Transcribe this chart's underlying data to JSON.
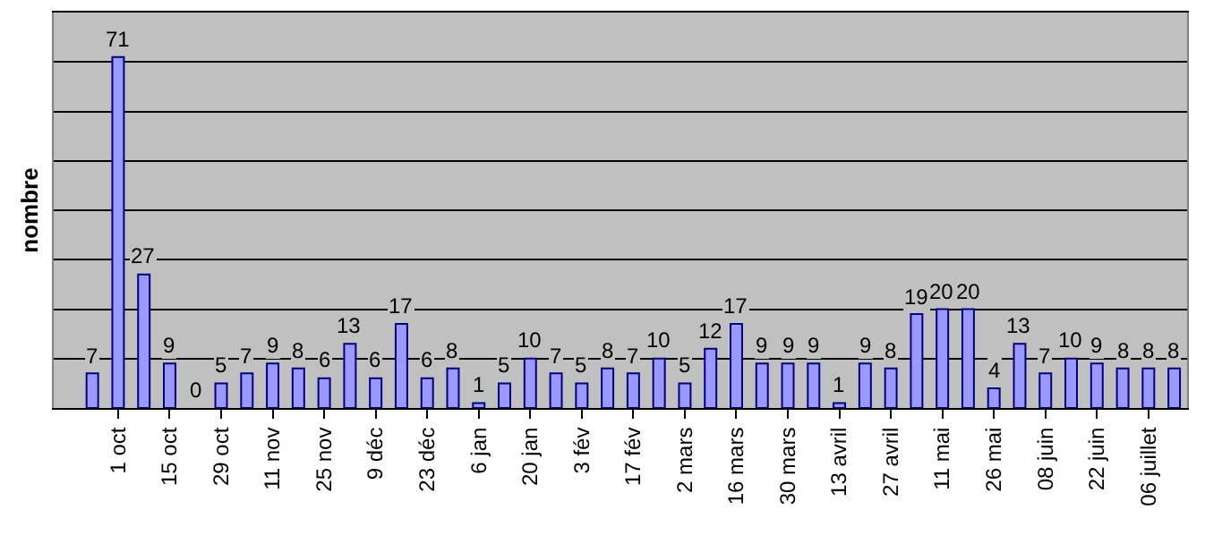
{
  "chart_data": {
    "type": "bar",
    "ylabel": "nombre",
    "categories": [
      null,
      null,
      "1 oct",
      null,
      "15 oct",
      null,
      "29 oct",
      null,
      "11 nov",
      null,
      "25 nov",
      null,
      "9 déc",
      null,
      "23 déc",
      null,
      "6 jan",
      null,
      "20 jan",
      null,
      "3 fév",
      null,
      "17 fév",
      null,
      "2 mars",
      null,
      "16 mars",
      null,
      "30 mars",
      null,
      "13 avril",
      null,
      "27 avril",
      null,
      "11 mai",
      null,
      "26 mai",
      null,
      "08 juin",
      null,
      "22 juin",
      null,
      "06 juillet",
      null
    ],
    "values": [
      null,
      7,
      71,
      27,
      9,
      0,
      5,
      7,
      9,
      8,
      6,
      13,
      6,
      17,
      6,
      8,
      1,
      5,
      10,
      7,
      5,
      8,
      7,
      10,
      5,
      12,
      17,
      9,
      9,
      9,
      1,
      9,
      8,
      19,
      20,
      20,
      4,
      13,
      7,
      10,
      9,
      8,
      8,
      8
    ],
    "color": "#9999ff",
    "data_labels": true,
    "ylim": [
      0,
      80
    ],
    "yticks": [
      {
        "value": 0,
        "label": null
      },
      {
        "value": 10,
        "label": null
      },
      {
        "value": 20,
        "label": null
      },
      {
        "value": 30,
        "label": null
      },
      {
        "value": 40,
        "label": null
      },
      {
        "value": 50,
        "label": null
      },
      {
        "value": 60,
        "label": null
      },
      {
        "value": 70,
        "label": null
      },
      {
        "value": 80,
        "label": null
      }
    ],
    "grid": "y",
    "tick_labels": "x",
    "legend": false
  }
}
